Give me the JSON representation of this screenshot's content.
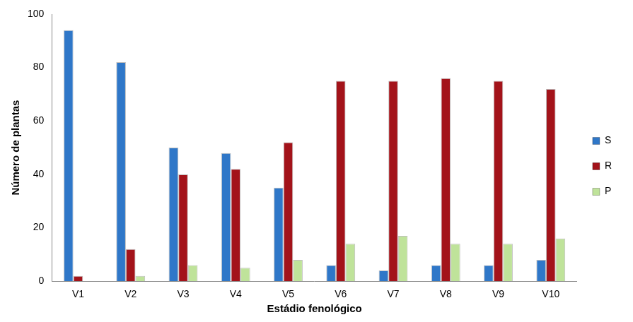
{
  "chart_data": {
    "type": "bar",
    "x_label": "Estádio fenológico",
    "y_label": "Número de plantas",
    "categories": [
      "V1",
      "V2",
      "V3",
      "V4",
      "V5",
      "V6",
      "V7",
      "V8",
      "V9",
      "V10"
    ],
    "series": [
      {
        "name": "S",
        "color": "#2f77c8",
        "values": [
          94,
          82,
          50,
          48,
          35,
          6,
          4,
          6,
          6,
          8
        ]
      },
      {
        "name": "R",
        "color": "#a3131a",
        "values": [
          2,
          12,
          40,
          42,
          52,
          75,
          75,
          76,
          75,
          72
        ]
      },
      {
        "name": "P",
        "color": "#bfe39a",
        "values": [
          0,
          2,
          6,
          5,
          8,
          14,
          17,
          14,
          14,
          16
        ]
      }
    ],
    "ylim": [
      0,
      100
    ],
    "yticks": [
      0,
      20,
      40,
      60,
      80,
      100
    ],
    "grid": false,
    "legend": "right"
  }
}
